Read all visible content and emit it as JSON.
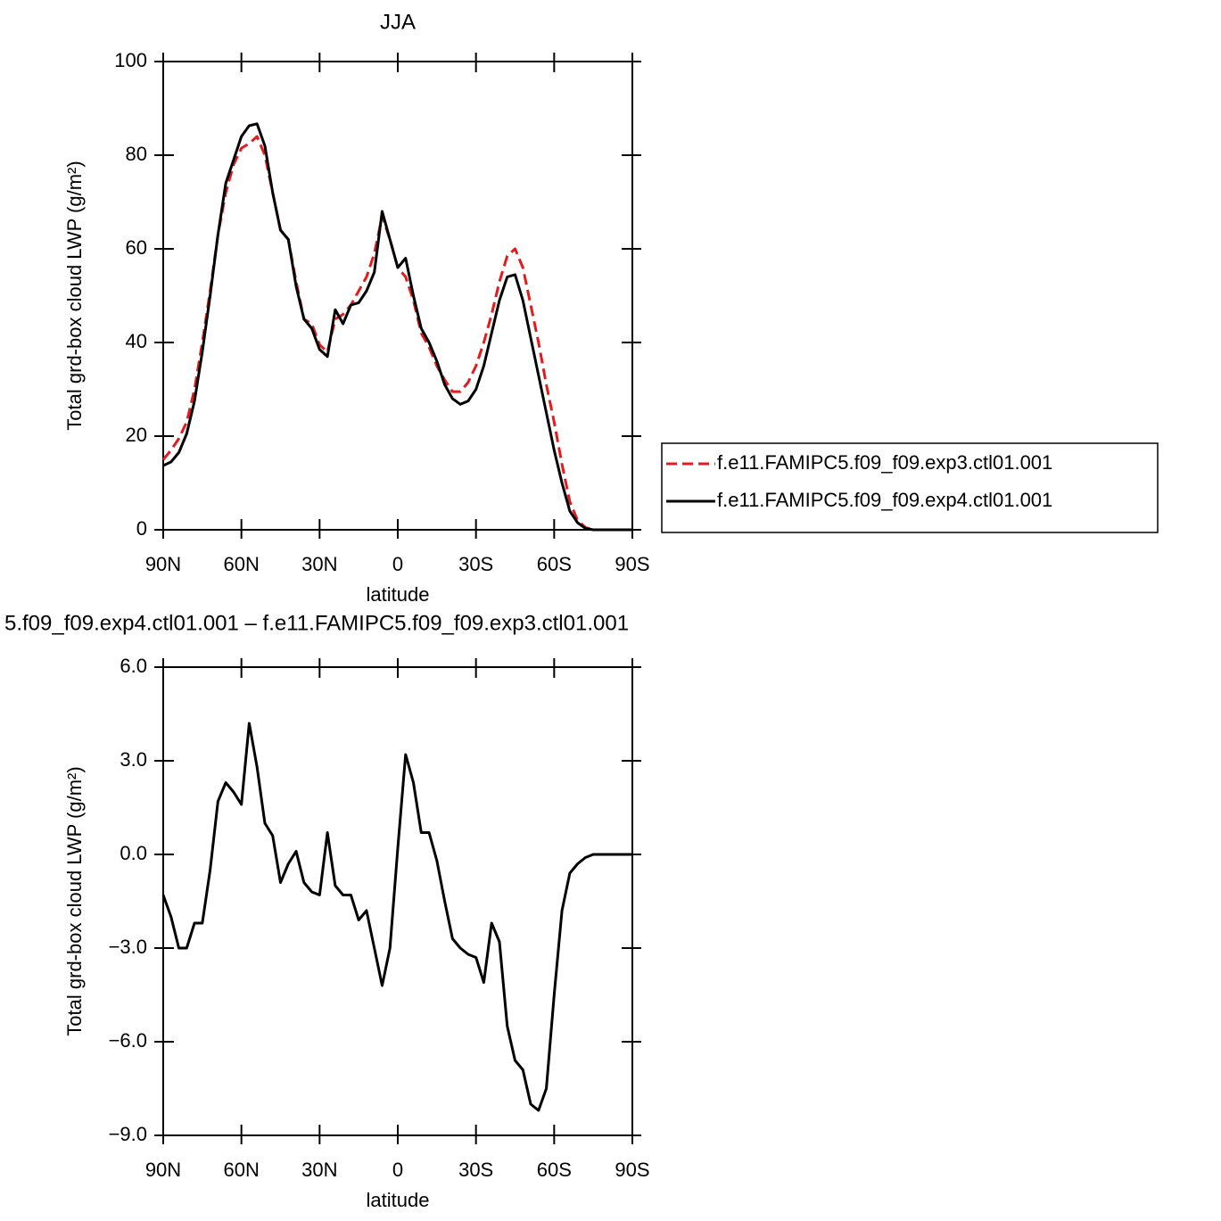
{
  "chart_data": [
    {
      "type": "line",
      "title": "JJA",
      "xlabel": "latitude",
      "ylabel": "Total grd-box cloud LWP (g/m²)",
      "x": [
        90,
        87,
        84,
        81,
        78,
        75,
        72,
        69,
        66,
        63,
        60,
        57,
        54,
        51,
        48,
        45,
        42,
        39,
        36,
        33,
        30,
        27,
        24,
        21,
        18,
        15,
        12,
        9,
        6,
        3,
        0,
        -3,
        -6,
        -9,
        -12,
        -15,
        -18,
        -21,
        -24,
        -27,
        -30,
        -33,
        -36,
        -39,
        -42,
        -45,
        -48,
        -51,
        -54,
        -57,
        -60,
        -63,
        -66,
        -69,
        -72,
        -75,
        -78,
        -81,
        -84,
        -87,
        -90
      ],
      "series": [
        {
          "name": "f.e11.FAMIPC5.f09_f09.exp3.ctl01.001",
          "color": "#e41a1c",
          "dash": true,
          "values": [
            15,
            17,
            19.5,
            23,
            30,
            40,
            51,
            63,
            72,
            78,
            81.5,
            82.5,
            84,
            80,
            72,
            64,
            62,
            53,
            45,
            44,
            39.5,
            38,
            45,
            46,
            48,
            51,
            54,
            59,
            67,
            62,
            56,
            54,
            49,
            42,
            39,
            35,
            32,
            29.5,
            29.5,
            31.5,
            35,
            40,
            46,
            53,
            58.5,
            60,
            56,
            48,
            40,
            31,
            23,
            14,
            6,
            2,
            0.5,
            0,
            0,
            0,
            0,
            0,
            0
          ]
        },
        {
          "name": "f.e11.FAMIPC5.f09_f09.exp4.ctl01.001",
          "color": "#000000",
          "dash": false,
          "values": [
            13.7,
            14.5,
            16.5,
            20.5,
            27.5,
            38,
            50,
            63,
            74,
            79,
            84,
            86.3,
            86.7,
            82,
            72,
            64,
            62,
            52,
            45,
            43,
            38.5,
            37,
            47,
            44,
            48,
            48.5,
            51,
            55,
            68,
            62,
            56,
            58,
            50,
            43,
            40,
            36,
            31,
            28,
            26.8,
            27.5,
            30,
            35,
            42,
            49,
            54,
            54.5,
            49,
            41,
            33,
            25,
            17,
            10,
            4,
            1.5,
            0.3,
            0,
            0,
            0,
            0,
            0,
            0
          ]
        }
      ],
      "xlim": [
        90,
        -90
      ],
      "xticks": [
        {
          "value": 90,
          "label": "90N"
        },
        {
          "value": 60,
          "label": "60N"
        },
        {
          "value": 30,
          "label": "30N"
        },
        0,
        {
          "value": -30,
          "label": "30S"
        },
        {
          "value": -60,
          "label": "60S"
        },
        {
          "value": -90,
          "label": "90S"
        }
      ],
      "ylim": [
        0,
        100
      ],
      "yticks": [
        0,
        20,
        40,
        60,
        80,
        100
      ],
      "legend": "right"
    },
    {
      "type": "line",
      "title": "5.f09_f09.exp4.ctl01.001 – f.e11.FAMIPC5.f09_f09.exp3.ctl01.001",
      "xlabel": "latitude",
      "ylabel": "Total grd-box cloud LWP (g/m²)",
      "x": [
        90,
        87,
        84,
        81,
        78,
        75,
        72,
        69,
        66,
        63,
        60,
        57,
        54,
        51,
        48,
        45,
        42,
        39,
        36,
        33,
        30,
        27,
        24,
        21,
        18,
        15,
        12,
        9,
        6,
        3,
        0,
        -3,
        -6,
        -9,
        -12,
        -15,
        -18,
        -21,
        -24,
        -27,
        -30,
        -33,
        -36,
        -39,
        -42,
        -45,
        -48,
        -51,
        -54,
        -57,
        -60,
        -63,
        -66,
        -69,
        -72,
        -75,
        -78,
        -81,
        -84,
        -87,
        -90
      ],
      "values": [
        -1.3,
        -2.0,
        -3.0,
        -3.0,
        -2.2,
        -2.2,
        -0.5,
        1.7,
        2.3,
        2.0,
        1.6,
        4.2,
        2.8,
        1.0,
        0.6,
        -0.9,
        -0.3,
        0.1,
        -0.9,
        -1.2,
        -1.3,
        0.7,
        -1.0,
        -1.3,
        -1.3,
        -2.1,
        -1.8,
        -3.0,
        -4.2,
        -3.0,
        0.2,
        3.2,
        2.3,
        0.7,
        0.7,
        -0.2,
        -1.5,
        -2.7,
        -3.0,
        -3.2,
        -3.3,
        -4.1,
        -2.2,
        -2.8,
        -5.5,
        -6.6,
        -6.9,
        -8.0,
        -8.2,
        -7.5,
        -4.5,
        -1.8,
        -0.6,
        -0.3,
        -0.1,
        0,
        0,
        0,
        0,
        0,
        0
      ],
      "color": "#000000",
      "xlim": [
        90,
        -90
      ],
      "xticks": [
        {
          "value": 90,
          "label": "90N"
        },
        {
          "value": 60,
          "label": "60N"
        },
        {
          "value": 30,
          "label": "30N"
        },
        0,
        {
          "value": -30,
          "label": "30S"
        },
        {
          "value": -60,
          "label": "60S"
        },
        {
          "value": -90,
          "label": "90S"
        }
      ],
      "ylim": [
        -9,
        6
      ],
      "yticks": [
        {
          "value": 6,
          "label": "6.0"
        },
        {
          "value": 3,
          "label": "3.0"
        },
        {
          "value": 0,
          "label": "0.0"
        },
        {
          "value": -3,
          "label": "−3.0"
        },
        {
          "value": -6,
          "label": "−6.0"
        },
        {
          "value": -9,
          "label": "−9.0"
        }
      ]
    }
  ]
}
